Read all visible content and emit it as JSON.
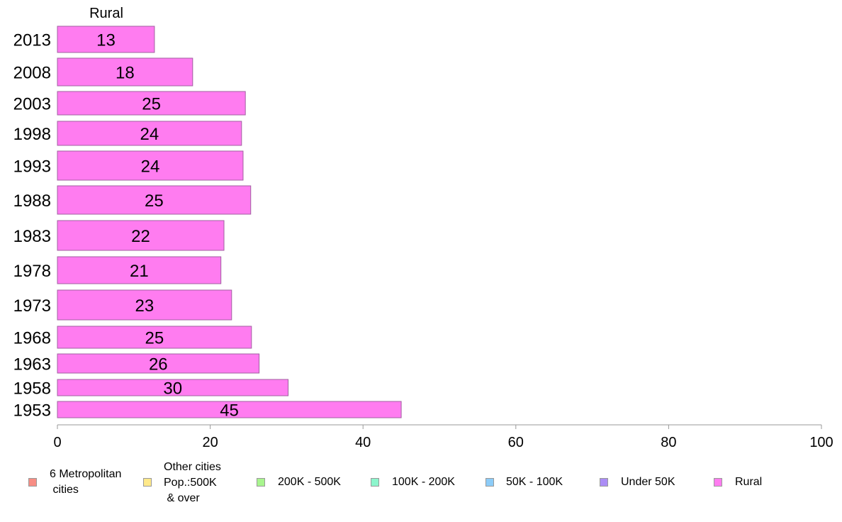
{
  "chart_data": {
    "type": "bar",
    "orientation": "horizontal",
    "title": "Rural",
    "categories": [
      "2013",
      "2008",
      "2003",
      "1998",
      "1993",
      "1988",
      "1983",
      "1978",
      "1973",
      "1968",
      "1963",
      "1958",
      "1953"
    ],
    "series": [
      {
        "name": "Rural",
        "values": [
          12.7,
          17.7,
          24.6,
          24.1,
          24.3,
          25.3,
          21.8,
          21.4,
          22.8,
          25.4,
          26.4,
          30.2,
          45.0
        ],
        "labels": [
          "13",
          "18",
          "25",
          "24",
          "24",
          "25",
          "22",
          "21",
          "23",
          "25",
          "26",
          "30",
          "45"
        ]
      }
    ],
    "xlim": [
      0,
      100
    ],
    "xticks": [
      0,
      20,
      40,
      60,
      80,
      100
    ],
    "grid": false,
    "legend_position": "bottom"
  },
  "legend": [
    {
      "label": "6 Metropolitan\n cities",
      "color": "#f78d84"
    },
    {
      "label": "Other cities\nPop.:500K\n & over",
      "color": "#ffe98a"
    },
    {
      "label": "200K - 500K",
      "color": "#a8f58e"
    },
    {
      "label": "100K - 200K",
      "color": "#8cf5cc"
    },
    {
      "label": "50K - 100K",
      "color": "#8cccf8"
    },
    {
      "label": "Under 50K",
      "color": "#ab8df5"
    },
    {
      "label": "Rural",
      "color": "#ff7cf0"
    }
  ]
}
